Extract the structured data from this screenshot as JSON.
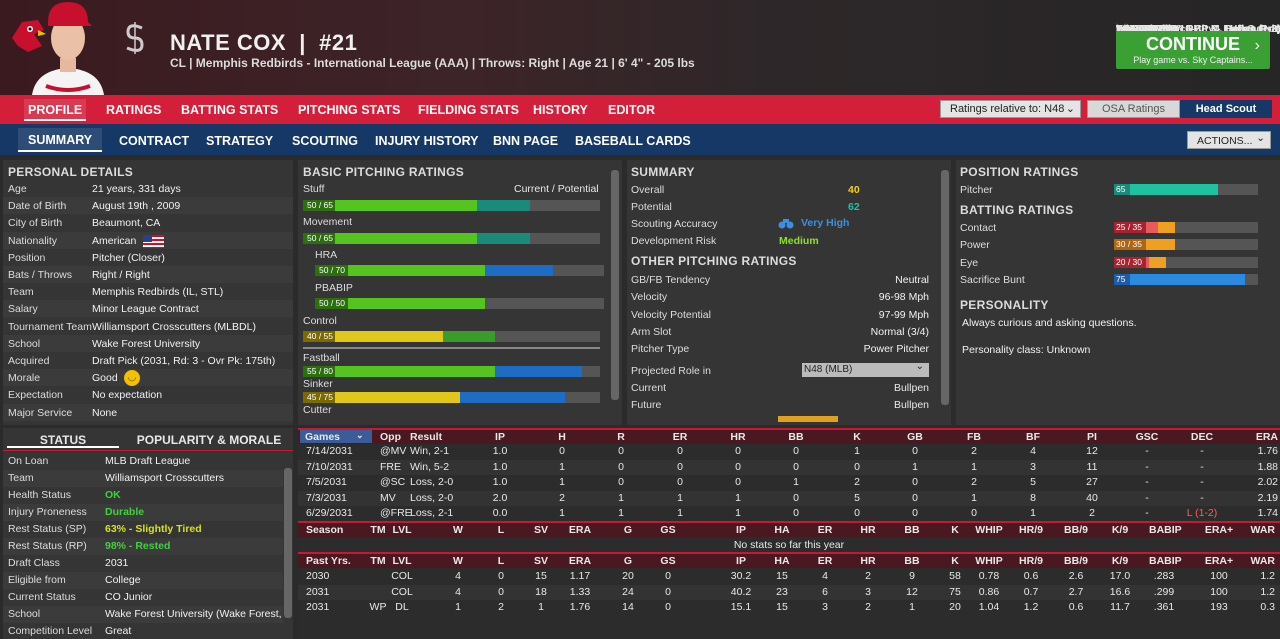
{
  "player": {
    "name": "NATE COX",
    "number": "#21",
    "sub": "CL | Memphis Redbirds - International League (AAA) | Throws: Right | Age 21 | 6' 4\" - 205 lbs"
  },
  "schedule": [
    {
      "day": "YESTERDAY",
      "game": "Win vs SPA, 10-2"
    },
    {
      "day": "TODAY",
      "game": "PLAY vs Space City - LHP C. Prielipp"
    },
    {
      "day": "TOMORROW",
      "game": "vs Nashville - RHP K. Senga (1-8)"
    },
    {
      "day": "FRI. JUL. 18",
      "game": "vs Nashville - RHP M. Heuer (1-2)"
    },
    {
      "day": "SAT. JUL. 19",
      "game": "vs Nashville - RHP C. Dollander (2-9)"
    }
  ],
  "continue": {
    "label": "CONTINUE",
    "sub": "Play game vs. Sky Captains..."
  },
  "nav1": [
    "PROFILE",
    "RATINGS",
    "BATTING STATS",
    "PITCHING STATS",
    "FIELDING STATS",
    "HISTORY",
    "EDITOR"
  ],
  "ratings_select": "Ratings relative to: N48",
  "osa": "OSA Ratings",
  "scout": "Head Scout",
  "nav2": [
    "SUMMARY",
    "CONTRACT",
    "STRATEGY",
    "SCOUTING",
    "INJURY HISTORY",
    "BNN PAGE",
    "BASEBALL CARDS"
  ],
  "actions": "ACTIONS...",
  "personal": {
    "title": "PERSONAL DETAILS",
    "rows": [
      [
        "Age",
        "21 years, 331 days"
      ],
      [
        "Date of Birth",
        "August 19th , 2009"
      ],
      [
        "City of Birth",
        "Beaumont, CA"
      ],
      [
        "Nationality",
        "American"
      ],
      [
        "Position",
        "Pitcher (Closer)"
      ],
      [
        "Bats / Throws",
        "Right / Right"
      ],
      [
        "Team",
        "Memphis Redbirds (IL, STL)"
      ],
      [
        "Salary",
        "Minor League Contract"
      ],
      [
        "Tournament Team",
        "Williamsport Crosscutters (MLBDL)"
      ],
      [
        "School",
        "Wake Forest University"
      ],
      [
        "Acquired",
        "Draft Pick (2031, Rd: 3 - Ovr Pk: 175th)"
      ],
      [
        "Morale",
        "Good"
      ],
      [
        "Expectation",
        "No expectation"
      ],
      [
        "Major Service",
        "None"
      ]
    ]
  },
  "status": {
    "tab1": "STATUS",
    "tab2": "POPULARITY & MORALE",
    "rows": [
      [
        "On Loan",
        "MLB Draft League",
        ""
      ],
      [
        "Team",
        "Williamsport Crosscutters",
        ""
      ],
      [
        "Health Status",
        "OK",
        "g"
      ],
      [
        "Injury Proneness",
        "Durable",
        "g"
      ],
      [
        "Rest Status (SP)",
        "63% - Slightly Tired",
        "y"
      ],
      [
        "Rest Status (RP)",
        "98% - Rested",
        "g"
      ],
      [
        "Draft Class",
        "2031",
        ""
      ],
      [
        "Eligible from",
        "College",
        ""
      ],
      [
        "Current Status",
        "CO Junior",
        ""
      ],
      [
        "School",
        "Wake Forest University (Wake Forest,",
        ""
      ],
      [
        "Competition Level",
        "Great",
        ""
      ]
    ]
  },
  "basic": {
    "title": "BASIC PITCHING RATINGS",
    "cp": "Current / Potential",
    "items": [
      {
        "name": "Stuff",
        "label": "50 / 65",
        "cur": 50,
        "pot": 65,
        "color": "#55c41e",
        "pcol": "#1a8a7a"
      },
      {
        "name": "Movement",
        "label": "50 / 65",
        "cur": 50,
        "pot": 65,
        "color": "#55c41e",
        "pcol": "#1a8a7a"
      },
      {
        "name": "HRA",
        "label": "50 / 70",
        "cur": 50,
        "pot": 70,
        "color": "#55c41e",
        "pcol": "#1e6cc4",
        "sub": true
      },
      {
        "name": "PBABIP",
        "label": "50 / 50",
        "cur": 50,
        "pot": 50,
        "color": "#55c41e",
        "pcol": "#55c41e",
        "sub": true
      },
      {
        "name": "Control",
        "label": "40 / 55",
        "cur": 40,
        "pot": 55,
        "color": "#e0c81a",
        "pcol": "#3a9a2a"
      },
      {
        "name": "Fastball",
        "label": "55 / 80",
        "cur": 55,
        "pot": 80,
        "color": "#55c41e",
        "pcol": "#1e6cc4"
      },
      {
        "name": "Sinker",
        "label": "45 / 75",
        "cur": 45,
        "pot": 75,
        "color": "#e0c81a",
        "pcol": "#1e6cc4"
      },
      {
        "name": "Cutter",
        "label": ""
      }
    ]
  },
  "summary": {
    "title": "SUMMARY",
    "overall_l": "Overall",
    "overall": "40",
    "potential_l": "Potential",
    "potential": "62",
    "acc_l": "Scouting Accuracy",
    "acc": "Very High",
    "risk_l": "Development Risk",
    "risk": "Medium"
  },
  "other": {
    "title": "OTHER PITCHING RATINGS",
    "rows": [
      [
        "GB/FB Tendency",
        "Neutral"
      ],
      [
        "Velocity",
        "96-98 Mph"
      ],
      [
        "Velocity Potential",
        "97-99 Mph"
      ],
      [
        "Arm Slot",
        "Normal (3/4)"
      ],
      [
        "Pitcher Type",
        "Power Pitcher"
      ]
    ],
    "role_l": "Projected Role in",
    "role": "N48 (MLB)",
    "cur_l": "Current",
    "cur": "Bullpen",
    "fut_l": "Future",
    "fut": "Bullpen"
  },
  "position": {
    "title": "POSITION RATINGS",
    "rows": [
      {
        "name": "Pitcher",
        "label": "65",
        "val": 65,
        "color": "#1ec1a0"
      }
    ]
  },
  "batting": {
    "title": "BATTING RATINGS",
    "rows": [
      {
        "name": "Contact",
        "label": "25 / 35",
        "cur": 25,
        "pot": 35,
        "color": "#e85b5b",
        "pcol": "#f0a020",
        "lc": "#a6232f"
      },
      {
        "name": "Power",
        "label": "30 / 35",
        "cur": 30,
        "pot": 35,
        "color": "#f0a020",
        "pcol": "#f0a020",
        "lc": "#b06510"
      },
      {
        "name": "Eye",
        "label": "20 / 30",
        "cur": 20,
        "pot": 30,
        "color": "#e85b5b",
        "pcol": "#f0a020",
        "lc": "#a6232f"
      },
      {
        "name": "Sacrifice Bunt",
        "label": "75",
        "cur": 75,
        "pot": 75,
        "color": "#2a8ae0",
        "pcol": "#2a8ae0",
        "lc": "#1d5da8"
      }
    ]
  },
  "personality": {
    "title": "PERSONALITY",
    "text": "Always curious and asking questions.",
    "cls": "Personality class: Unknown"
  },
  "games_hdr": [
    "Games",
    "Opp",
    "Result",
    "IP",
    "H",
    "R",
    "ER",
    "HR",
    "BB",
    "K",
    "GB",
    "FB",
    "BF",
    "PI",
    "GSC",
    "DEC",
    "ERA"
  ],
  "games": [
    [
      "7/14/2031",
      "@MV",
      "Win, 2-1",
      "1.0",
      "0",
      "0",
      "0",
      "0",
      "0",
      "1",
      "0",
      "2",
      "4",
      "12",
      "-",
      "-",
      "1.76"
    ],
    [
      "7/10/2031",
      "FRE",
      "Win, 5-2",
      "1.0",
      "1",
      "0",
      "0",
      "0",
      "0",
      "0",
      "1",
      "1",
      "3",
      "11",
      "-",
      "-",
      "1.88"
    ],
    [
      "7/5/2031",
      "@SC",
      "Loss, 2-0",
      "1.0",
      "1",
      "0",
      "0",
      "0",
      "1",
      "2",
      "0",
      "2",
      "5",
      "27",
      "-",
      "-",
      "2.02"
    ],
    [
      "7/3/2031",
      "MV",
      "Loss, 2-0",
      "2.0",
      "2",
      "1",
      "1",
      "1",
      "0",
      "5",
      "0",
      "1",
      "8",
      "40",
      "-",
      "-",
      "2.19"
    ],
    [
      "6/29/2031",
      "@FRE",
      "Loss, 2-1",
      "0.0",
      "1",
      "1",
      "1",
      "1",
      "0",
      "0",
      "0",
      "0",
      "1",
      "2",
      "-",
      "L (1-2)",
      "1.74"
    ]
  ],
  "season_hdr": [
    "Season",
    "TM",
    "LVL",
    "W",
    "L",
    "SV",
    "ERA",
    "G",
    "GS",
    "IP",
    "HA",
    "ER",
    "HR",
    "BB",
    "K",
    "WHIP",
    "HR/9",
    "BB/9",
    "K/9",
    "BABIP",
    "ERA+",
    "WAR"
  ],
  "season_none": "No stats so far this year",
  "past_hdr": [
    "Past Yrs.",
    "TM",
    "LVL",
    "W",
    "L",
    "SV",
    "ERA",
    "G",
    "GS",
    "IP",
    "HA",
    "ER",
    "HR",
    "BB",
    "K",
    "WHIP",
    "HR/9",
    "BB/9",
    "K/9",
    "BABIP",
    "ERA+",
    "WAR"
  ],
  "past": [
    [
      "2030",
      "",
      "COL",
      "4",
      "0",
      "15",
      "1.17",
      "20",
      "0",
      "30.2",
      "15",
      "4",
      "2",
      "9",
      "58",
      "0.78",
      "0.6",
      "2.6",
      "17.0",
      ".283",
      "100",
      "1.2"
    ],
    [
      "2031",
      "",
      "COL",
      "4",
      "0",
      "18",
      "1.33",
      "24",
      "0",
      "40.2",
      "23",
      "6",
      "3",
      "12",
      "75",
      "0.86",
      "0.7",
      "2.7",
      "16.6",
      ".299",
      "100",
      "1.2"
    ],
    [
      "2031",
      "WP",
      "DL",
      "1",
      "2",
      "1",
      "1.76",
      "14",
      "0",
      "15.1",
      "15",
      "3",
      "2",
      "1",
      "20",
      "1.04",
      "1.2",
      "0.6",
      "11.7",
      ".361",
      "193",
      "0.3"
    ]
  ]
}
